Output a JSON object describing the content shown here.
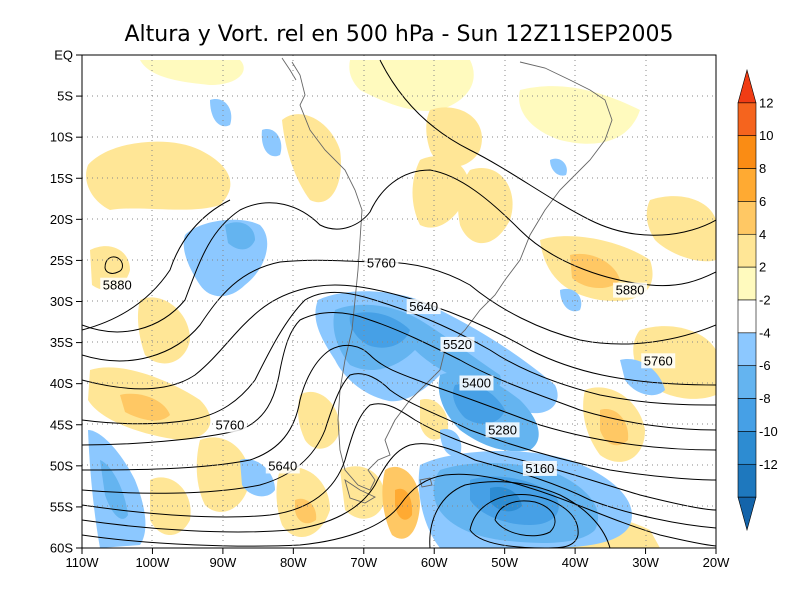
{
  "title": "Altura y Vort. rel en 500 hPa - Sun 12Z11SEP2005",
  "map": {
    "lat_labels": [
      "EQ",
      "5S",
      "10S",
      "15S",
      "20S",
      "25S",
      "30S",
      "35S",
      "40S",
      "45S",
      "50S",
      "55S",
      "60S"
    ],
    "lon_labels": [
      "110W",
      "100W",
      "90W",
      "80W",
      "70W",
      "60W",
      "50W",
      "40W",
      "30W",
      "20W"
    ],
    "lat_range": [
      -60,
      0
    ],
    "lon_range": [
      -110,
      -20
    ],
    "grid": "dotted",
    "contour_labels": [
      {
        "text": "5880",
        "lon": -105,
        "lat": -28.2
      },
      {
        "text": "5760",
        "lon": -89,
        "lat": -45.2
      },
      {
        "text": "5640",
        "lon": -81.5,
        "lat": -50.2
      },
      {
        "text": "5760",
        "lon": -67.5,
        "lat": -25.5
      },
      {
        "text": "5640",
        "lon": -61.5,
        "lat": -30.8
      },
      {
        "text": "5520",
        "lon": -56.7,
        "lat": -35.4
      },
      {
        "text": "5400",
        "lon": -54,
        "lat": -40.1
      },
      {
        "text": "5280",
        "lon": -50.3,
        "lat": -45.8
      },
      {
        "text": "5160",
        "lon": -45,
        "lat": -50.5
      },
      {
        "text": "5880",
        "lon": -32.2,
        "lat": -28.8
      },
      {
        "text": "5760",
        "lon": -28.2,
        "lat": -37.4
      }
    ]
  },
  "colorbar": {
    "labels": [
      "12",
      "10",
      "8",
      "6",
      "4",
      "2",
      "-2",
      "-4",
      "-6",
      "-8",
      "-10",
      "-12"
    ],
    "colors": [
      "#f03c14",
      "#f5641e",
      "#fa8c14",
      "#ffaa32",
      "#ffc864",
      "#ffe696",
      "#fffabe",
      "#ffffff",
      "#8cc8ff",
      "#64b4f0",
      "#46a0e6",
      "#2d8cd2",
      "#1e78be",
      "#1464aa"
    ]
  }
}
